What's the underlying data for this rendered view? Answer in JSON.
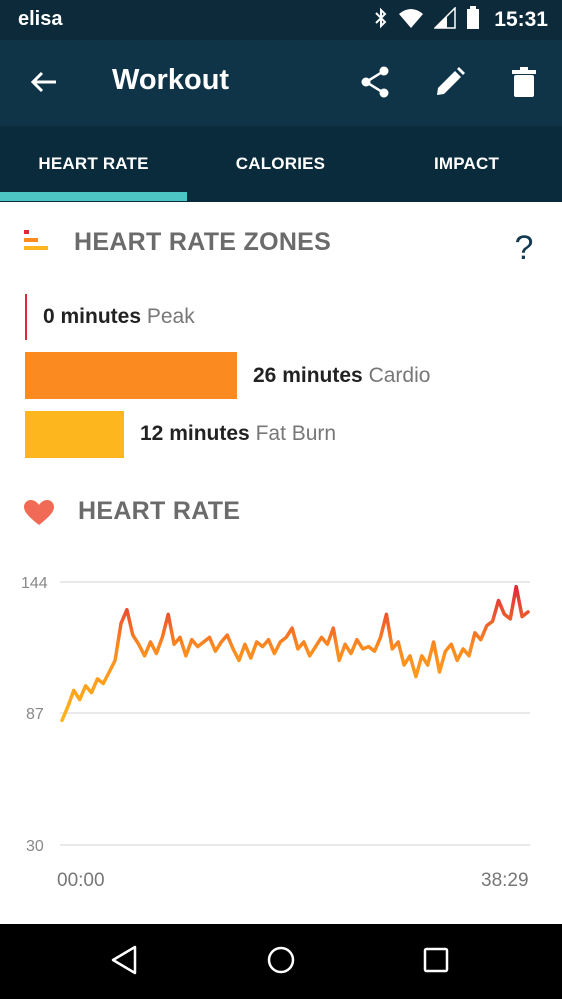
{
  "status_bar": {
    "carrier": "elisa",
    "time": "15:31",
    "icons": [
      "bluetooth-icon",
      "wifi-icon",
      "signal-icon",
      "battery-icon"
    ]
  },
  "app_bar": {
    "title": "Workout",
    "actions": [
      "back-arrow-icon",
      "share-icon",
      "edit-pencil-icon",
      "delete-trash-icon"
    ]
  },
  "tabs": [
    {
      "label": "HEART RATE",
      "active": true
    },
    {
      "label": "CALORIES",
      "active": false
    },
    {
      "label": "IMPACT",
      "active": false
    }
  ],
  "zones": {
    "title": "HEART RATE ZONES",
    "help": "?",
    "items": [
      {
        "minutes": "0 minutes",
        "name": "Peak",
        "value": 0,
        "color": "#e0283a"
      },
      {
        "minutes": "26 minutes",
        "name": "Cardio",
        "value": 26,
        "color": "#fb8a20"
      },
      {
        "minutes": "12 minutes",
        "name": "Fat Burn",
        "value": 12,
        "color": "#fdb61d"
      }
    ]
  },
  "heart_rate": {
    "title": "HEART RATE",
    "start_time": "00:00",
    "end_time": "38:29"
  },
  "colors": {
    "header": "#0f3448",
    "tabs": "#0a2b3c",
    "tab_indicator": "#4cc5c4",
    "heart": "#f06a55"
  },
  "chart_data": {
    "type": "line",
    "y_ticks": [
      "144",
      "87",
      "30"
    ],
    "ylim": [
      30,
      144
    ],
    "x_ticks": [
      "00:00",
      "38:29"
    ],
    "series": [
      {
        "values": [
          84,
          90,
          97,
          93,
          99,
          96,
          102,
          100,
          105,
          110,
          126,
          132,
          121,
          117,
          112,
          118,
          113,
          120,
          130,
          117,
          120,
          112,
          119,
          116,
          118,
          120,
          114,
          118,
          121,
          115,
          110,
          117,
          111,
          118,
          116,
          119,
          113,
          118,
          120,
          124,
          115,
          118,
          112,
          116,
          120,
          117,
          124,
          110,
          117,
          113,
          119,
          115,
          116,
          114,
          120,
          130,
          115,
          118,
          108,
          112,
          103,
          112,
          108,
          118,
          105,
          114,
          117,
          110,
          115,
          112,
          122,
          119,
          125,
          127,
          136,
          130,
          128,
          142,
          129,
          131
        ]
      }
    ]
  }
}
